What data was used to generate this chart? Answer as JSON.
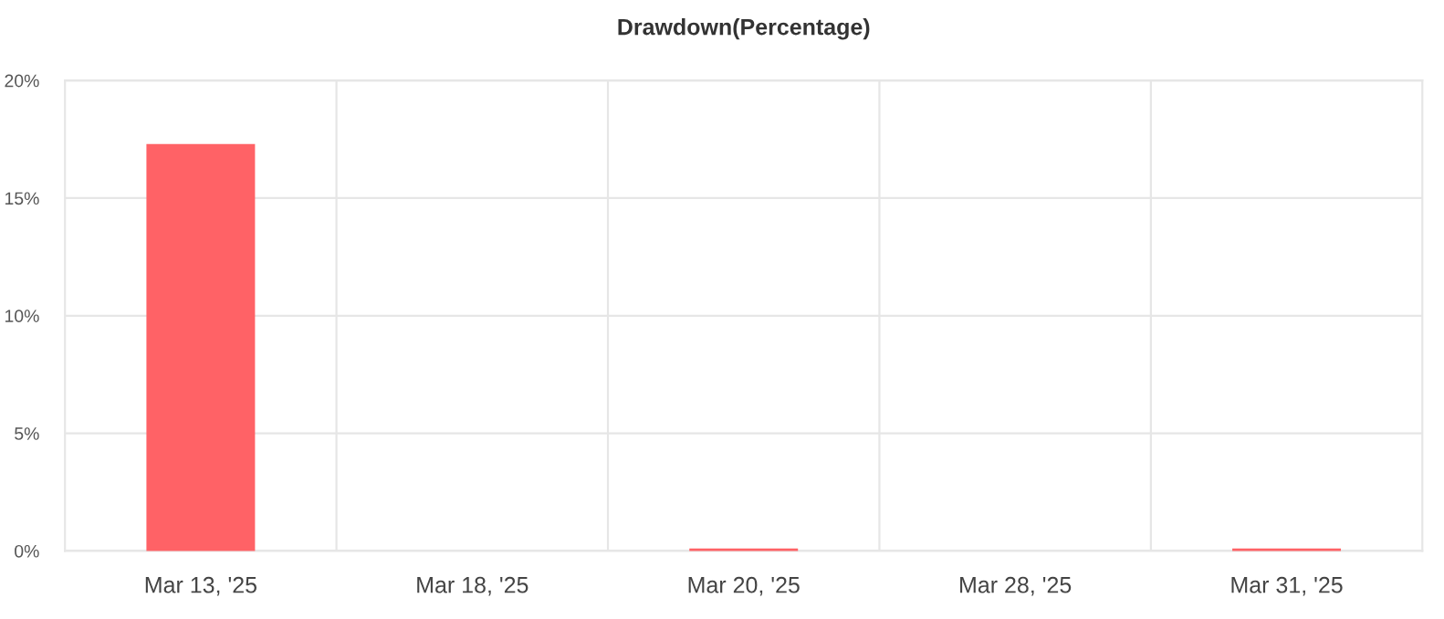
{
  "chart_data": {
    "type": "bar",
    "title": "Drawdown(Percentage)",
    "categories": [
      "Mar 13, '25",
      "Mar 18, '25",
      "Mar 20, '25",
      "Mar 28, '25",
      "Mar 31, '25"
    ],
    "series": [
      {
        "color": "#ff6266",
        "values": [
          17.3,
          null,
          0.1,
          null,
          0.1
        ]
      }
    ],
    "ylim": [
      0,
      20
    ],
    "yticks": [
      {
        "value": 0,
        "label": "0%"
      },
      {
        "value": 5,
        "label": "5%"
      },
      {
        "value": 10,
        "label": "10%"
      },
      {
        "value": 15,
        "label": "15%"
      },
      {
        "value": 20,
        "label": "20%"
      }
    ],
    "grid": true
  }
}
